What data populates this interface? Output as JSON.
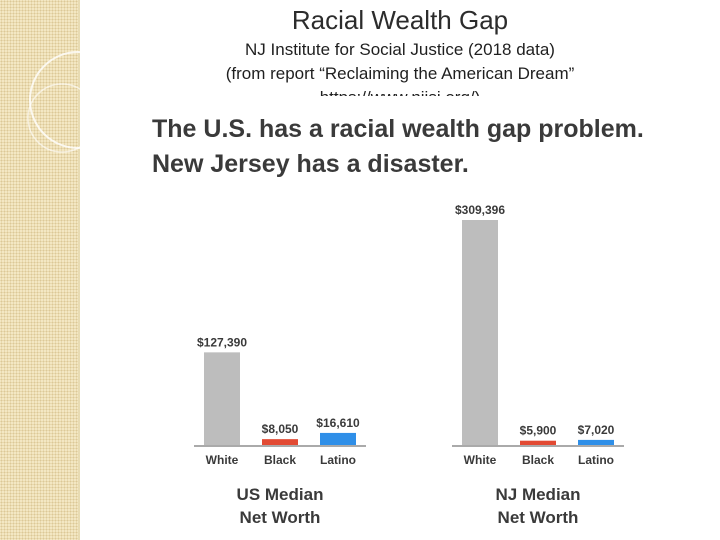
{
  "slide": {
    "title": "Racial Wealth Gap",
    "subtitle_line1": "NJ Institute for Social Justice (2018 data)",
    "subtitle_line2": "(from report “Reclaiming the American Dream”",
    "subtitle_line3": "https://www.njisj.org/)"
  },
  "infographic": {
    "headline_line1": "The U.S. has a racial wealth gap problem.",
    "headline_line2": "New Jersey has a disaster."
  },
  "colors": {
    "White": "#bdbdbd",
    "Black": "#e24a33",
    "Latino": "#2f8fe8",
    "sidebar": "#f3e7c3"
  },
  "chart_data": [
    {
      "type": "bar",
      "title_line1": "US Median",
      "title_line2": "Net Worth",
      "categories": [
        "White",
        "Black",
        "Latino"
      ],
      "values": [
        127390,
        8050,
        16610
      ],
      "value_labels": [
        "$127,390",
        "$8,050",
        "$16,610"
      ],
      "ylim": [
        0,
        309396
      ],
      "grid": false
    },
    {
      "type": "bar",
      "title_line1": "NJ Median",
      "title_line2": "Net Worth",
      "categories": [
        "White",
        "Black",
        "Latino"
      ],
      "values": [
        309396,
        5900,
        7020
      ],
      "value_labels": [
        "$309,396",
        "$5,900",
        "$7,020"
      ],
      "ylim": [
        0,
        309396
      ],
      "grid": false
    }
  ]
}
